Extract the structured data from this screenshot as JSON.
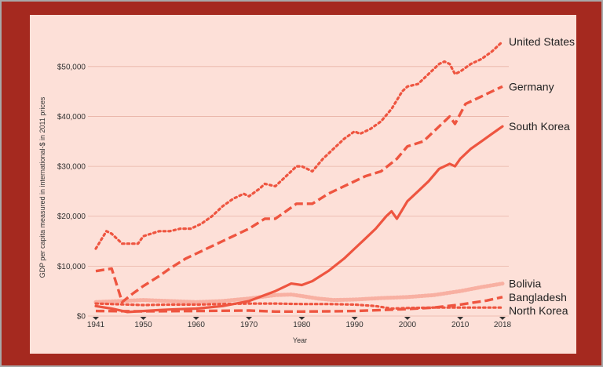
{
  "chart_data": {
    "type": "line",
    "title": "",
    "xlabel": "Year",
    "ylabel": "GDP per capita measured in international-$ in 2011 prices",
    "xlim": [
      1941,
      2018
    ],
    "ylim": [
      0,
      55000
    ],
    "x_ticks": [
      1941,
      1950,
      1960,
      1970,
      1980,
      1990,
      2000,
      2010,
      2018
    ],
    "y_ticks": [
      {
        "value": 0,
        "label": "$0"
      },
      {
        "value": 10000,
        "label": "$10,000"
      },
      {
        "value": 20000,
        "label": "$20,000"
      },
      {
        "value": 30000,
        "label": "$30,000"
      },
      {
        "value": 40000,
        "label": "$40,000"
      },
      {
        "value": 50000,
        "label": "$50,000"
      }
    ],
    "line_color": "#ee5540",
    "series": [
      {
        "name": "United States",
        "style": "dotted",
        "points": [
          [
            1941,
            13500
          ],
          [
            1943,
            17000
          ],
          [
            1944,
            16500
          ],
          [
            1946,
            14500
          ],
          [
            1949,
            14500
          ],
          [
            1950,
            16000
          ],
          [
            1953,
            17000
          ],
          [
            1955,
            17000
          ],
          [
            1957,
            17500
          ],
          [
            1959,
            17500
          ],
          [
            1961,
            18500
          ],
          [
            1963,
            20000
          ],
          [
            1965,
            22000
          ],
          [
            1967,
            23500
          ],
          [
            1969,
            24500
          ],
          [
            1970,
            24000
          ],
          [
            1972,
            25500
          ],
          [
            1973,
            26500
          ],
          [
            1975,
            26000
          ],
          [
            1977,
            28000
          ],
          [
            1979,
            30000
          ],
          [
            1980,
            30000
          ],
          [
            1982,
            29000
          ],
          [
            1984,
            31500
          ],
          [
            1986,
            33500
          ],
          [
            1988,
            35500
          ],
          [
            1990,
            37000
          ],
          [
            1991,
            36500
          ],
          [
            1993,
            37500
          ],
          [
            1995,
            39000
          ],
          [
            1997,
            41500
          ],
          [
            1999,
            45000
          ],
          [
            2000,
            46000
          ],
          [
            2002,
            46500
          ],
          [
            2004,
            48500
          ],
          [
            2006,
            50500
          ],
          [
            2007,
            51000
          ],
          [
            2008,
            50500
          ],
          [
            2009,
            48500
          ],
          [
            2010,
            49000
          ],
          [
            2012,
            50500
          ],
          [
            2014,
            51500
          ],
          [
            2016,
            53000
          ],
          [
            2018,
            55000
          ]
        ]
      },
      {
        "name": "Germany",
        "style": "dashed",
        "points": [
          [
            1941,
            9000
          ],
          [
            1944,
            9500
          ],
          [
            1946,
            2800
          ],
          [
            1948,
            4500
          ],
          [
            1950,
            6000
          ],
          [
            1953,
            8000
          ],
          [
            1955,
            9500
          ],
          [
            1958,
            11500
          ],
          [
            1960,
            12500
          ],
          [
            1963,
            14000
          ],
          [
            1965,
            15000
          ],
          [
            1968,
            16500
          ],
          [
            1970,
            17500
          ],
          [
            1973,
            19500
          ],
          [
            1975,
            19500
          ],
          [
            1977,
            21000
          ],
          [
            1979,
            22500
          ],
          [
            1980,
            22500
          ],
          [
            1982,
            22500
          ],
          [
            1985,
            24500
          ],
          [
            1988,
            26000
          ],
          [
            1990,
            27000
          ],
          [
            1992,
            28000
          ],
          [
            1995,
            29000
          ],
          [
            1998,
            31500
          ],
          [
            2000,
            34000
          ],
          [
            2003,
            35000
          ],
          [
            2006,
            38000
          ],
          [
            2008,
            40000
          ],
          [
            2009,
            38500
          ],
          [
            2011,
            42500
          ],
          [
            2013,
            43500
          ],
          [
            2016,
            45000
          ],
          [
            2018,
            46000
          ]
        ]
      },
      {
        "name": "South Korea",
        "style": "solid",
        "points": [
          [
            1941,
            2000
          ],
          [
            1944,
            1500
          ],
          [
            1947,
            800
          ],
          [
            1950,
            1000
          ],
          [
            1953,
            1200
          ],
          [
            1955,
            1300
          ],
          [
            1960,
            1500
          ],
          [
            1965,
            2000
          ],
          [
            1970,
            3000
          ],
          [
            1973,
            4200
          ],
          [
            1975,
            5000
          ],
          [
            1978,
            6500
          ],
          [
            1980,
            6200
          ],
          [
            1982,
            7000
          ],
          [
            1985,
            9000
          ],
          [
            1988,
            11500
          ],
          [
            1990,
            13500
          ],
          [
            1992,
            15500
          ],
          [
            1994,
            17500
          ],
          [
            1996,
            20000
          ],
          [
            1997,
            21000
          ],
          [
            1998,
            19500
          ],
          [
            2000,
            23000
          ],
          [
            2002,
            25000
          ],
          [
            2004,
            27000
          ],
          [
            2006,
            29500
          ],
          [
            2008,
            30500
          ],
          [
            2009,
            30000
          ],
          [
            2010,
            31500
          ],
          [
            2012,
            33500
          ],
          [
            2014,
            35000
          ],
          [
            2016,
            36500
          ],
          [
            2018,
            38000
          ]
        ]
      },
      {
        "name": "Bolivia",
        "style": "dotted-light",
        "points": [
          [
            1941,
            2800
          ],
          [
            1950,
            3200
          ],
          [
            1955,
            3000
          ],
          [
            1960,
            2800
          ],
          [
            1965,
            3000
          ],
          [
            1970,
            3500
          ],
          [
            1975,
            4200
          ],
          [
            1978,
            4300
          ],
          [
            1980,
            4000
          ],
          [
            1983,
            3500
          ],
          [
            1986,
            3200
          ],
          [
            1990,
            3300
          ],
          [
            1995,
            3600
          ],
          [
            2000,
            3800
          ],
          [
            2005,
            4200
          ],
          [
            2010,
            5000
          ],
          [
            2014,
            5800
          ],
          [
            2018,
            6500
          ]
        ]
      },
      {
        "name": "Bangladesh",
        "style": "dashed",
        "points": [
          [
            1941,
            1000
          ],
          [
            1950,
            950
          ],
          [
            1960,
            1000
          ],
          [
            1970,
            1100
          ],
          [
            1975,
            900
          ],
          [
            1980,
            900
          ],
          [
            1985,
            950
          ],
          [
            1990,
            1000
          ],
          [
            1995,
            1200
          ],
          [
            2000,
            1400
          ],
          [
            2005,
            1700
          ],
          [
            2010,
            2300
          ],
          [
            2015,
            3100
          ],
          [
            2018,
            3800
          ]
        ]
      },
      {
        "name": "North Korea",
        "style": "dotted",
        "points": [
          [
            1941,
            2500
          ],
          [
            1950,
            2200
          ],
          [
            1955,
            2300
          ],
          [
            1960,
            2300
          ],
          [
            1965,
            2400
          ],
          [
            1970,
            2500
          ],
          [
            1975,
            2500
          ],
          [
            1980,
            2400
          ],
          [
            1985,
            2400
          ],
          [
            1990,
            2300
          ],
          [
            1994,
            2000
          ],
          [
            1997,
            1500
          ],
          [
            2000,
            1600
          ],
          [
            2005,
            1700
          ],
          [
            2010,
            1700
          ],
          [
            2018,
            1700
          ]
        ]
      }
    ]
  }
}
